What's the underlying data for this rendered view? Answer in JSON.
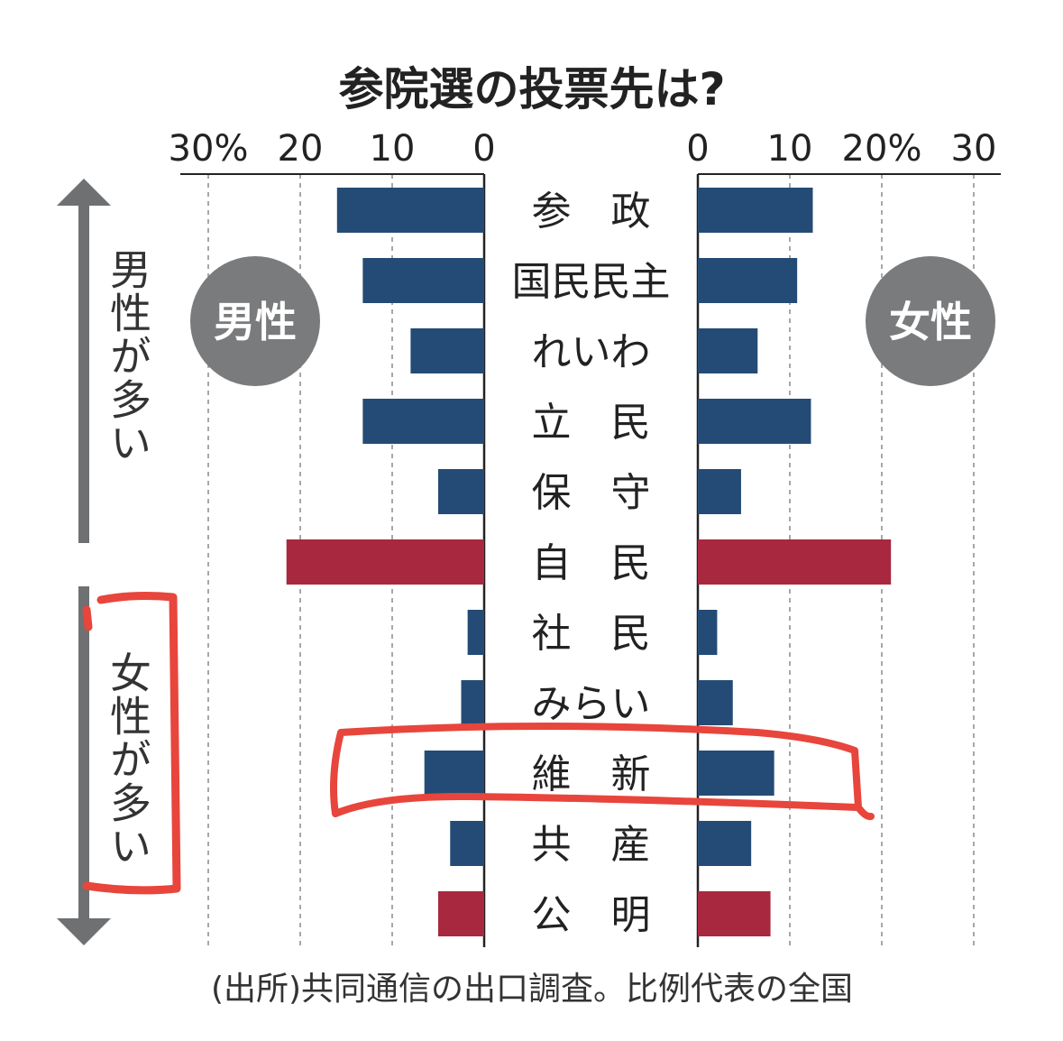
{
  "chart_data": {
    "type": "bar",
    "title": "参院選の投票先は?",
    "source": "(出所)共同通信の出口調査。比例代表の全国",
    "xlim": [
      0,
      30
    ],
    "tick_values": [
      0,
      10,
      20,
      30
    ],
    "left_ticks": [
      "30%",
      "20",
      "10",
      "0"
    ],
    "right_ticks": [
      "0",
      "10",
      "20%",
      "30"
    ],
    "categories": [
      "参　政",
      "国民民主",
      "れいわ",
      "立　民",
      "保　守",
      "自　民",
      "社　民",
      "みらい",
      "維　新",
      "共　産",
      "公　明"
    ],
    "series": [
      {
        "name": "男性",
        "values": [
          16,
          13.2,
          8,
          13.2,
          5,
          21.5,
          1.8,
          2.5,
          6.5,
          3.7,
          5
        ]
      },
      {
        "name": "女性",
        "values": [
          12.5,
          10.8,
          6.5,
          12.3,
          4.7,
          21,
          2.1,
          3.8,
          8.3,
          5.8,
          7.9
        ]
      }
    ],
    "bar_colors": [
      "blue",
      "blue",
      "blue",
      "blue",
      "blue",
      "red",
      "blue",
      "blue",
      "blue",
      "blue",
      "red"
    ],
    "colors": {
      "blue": "#244b75",
      "red": "#a8283f",
      "badge": "#7a7b7d",
      "arrow": "#6e7072",
      "marker": "#e8453c"
    },
    "grid": true
  },
  "badges": {
    "male": "男性",
    "female": "女性"
  },
  "side_labels": {
    "top": "男性が多い",
    "bottom": "女性が多い"
  }
}
